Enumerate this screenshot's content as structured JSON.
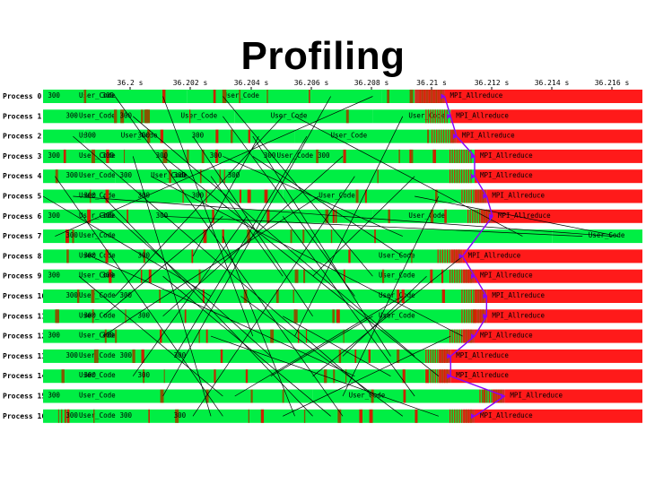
{
  "title": "Profiling",
  "axis": {
    "ticks": [
      "36.2 s",
      "36.202 s",
      "36.204 s",
      "36.206 s",
      "36.208 s",
      "36.21 s",
      "36.212 s",
      "36.214 s",
      "36.216 s"
    ]
  },
  "colors": {
    "user_code": "#00ee44",
    "mpi_allreduce": "#ff1a1a",
    "message_line": "#000000",
    "collective_arrow": "#8800ff"
  },
  "processes": [
    {
      "label": "Process 0",
      "segments": [
        {
          "start": 0.0,
          "end": 0.24,
          "kind": "user",
          "text": "User_Code"
        },
        {
          "start": 0.24,
          "end": 0.565,
          "kind": "user",
          "text": "User_Code"
        },
        {
          "start": 0.565,
          "end": 0.62,
          "kind": "user",
          "text": "User_Code"
        },
        {
          "start": 0.67,
          "end": 1.0,
          "kind": "mpi",
          "text": "MPI_Allreduce"
        }
      ],
      "tags": [
        "300",
        "300"
      ]
    },
    {
      "label": "Process 1",
      "segments": [
        {
          "start": 0.0,
          "end": 0.17,
          "kind": "user",
          "text": "User_Code"
        },
        {
          "start": 0.17,
          "end": 0.32,
          "kind": "user",
          "text": "User_Code"
        },
        {
          "start": 0.32,
          "end": 0.55,
          "kind": "user",
          "text": "User_Code"
        },
        {
          "start": 0.55,
          "end": 0.68,
          "kind": "user",
          "text": "User_Code"
        },
        {
          "start": 0.68,
          "end": 1.0,
          "kind": "mpi",
          "text": "MPI_Allreduce"
        }
      ],
      "tags": [
        "300",
        "300"
      ]
    },
    {
      "label": "Process 2",
      "segments": [
        {
          "start": 0.0,
          "end": 0.07,
          "kind": "user",
          "text": "User_Code"
        },
        {
          "start": 0.07,
          "end": 0.42,
          "kind": "user",
          "text": "User_Code"
        },
        {
          "start": 0.42,
          "end": 0.68,
          "kind": "user",
          "text": "User_Code"
        },
        {
          "start": 0.69,
          "end": 1.0,
          "kind": "mpi",
          "text": "MPI_Allreduce"
        }
      ],
      "tags": [
        "300",
        "300",
        "300"
      ]
    },
    {
      "label": "Process 3",
      "segments": [
        {
          "start": 0.0,
          "end": 0.33,
          "kind": "user",
          "text": "User_Code"
        },
        {
          "start": 0.33,
          "end": 0.72,
          "kind": "user",
          "text": "User_Code"
        },
        {
          "start": 0.72,
          "end": 1.0,
          "kind": "mpi",
          "text": "MPI_Allreduce"
        }
      ],
      "tags": [
        "300",
        "300",
        "300",
        "300",
        "300",
        "300"
      ]
    },
    {
      "label": "Process 4",
      "segments": [
        {
          "start": 0.0,
          "end": 0.12,
          "kind": "user",
          "text": "User_Code"
        },
        {
          "start": 0.12,
          "end": 0.72,
          "kind": "user",
          "text": "User_Code"
        },
        {
          "start": 0.72,
          "end": 1.0,
          "kind": "mpi",
          "text": "MPI_Allreduce"
        }
      ],
      "tags": [
        "300",
        "300",
        "300",
        "300"
      ]
    },
    {
      "label": "Process 5",
      "segments": [
        {
          "start": 0.0,
          "end": 0.4,
          "kind": "user",
          "text": "User_Code"
        },
        {
          "start": 0.4,
          "end": 0.72,
          "kind": "user",
          "text": "User_Code"
        },
        {
          "start": 0.74,
          "end": 1.0,
          "kind": "mpi",
          "text": "MPI_Allreduce"
        }
      ],
      "tags": [
        "300",
        "300",
        "300"
      ]
    },
    {
      "label": "Process 6",
      "segments": [
        {
          "start": 0.0,
          "end": 0.55,
          "kind": "user",
          "text": "User_Code"
        },
        {
          "start": 0.55,
          "end": 0.73,
          "kind": "user",
          "text": "User_Code"
        },
        {
          "start": 0.75,
          "end": 1.0,
          "kind": "mpi",
          "text": "MPI_Allreduce"
        }
      ],
      "tags": [
        "300",
        "300",
        "300"
      ]
    },
    {
      "label": "Process 7",
      "segments": [
        {
          "start": 0.0,
          "end": 0.85,
          "kind": "user",
          "text": "User_Code"
        },
        {
          "start": 0.85,
          "end": 1.0,
          "kind": "user",
          "text": "User_Code"
        }
      ],
      "tags": [
        "300"
      ]
    },
    {
      "label": "Process 8",
      "segments": [
        {
          "start": 0.0,
          "end": 0.5,
          "kind": "user",
          "text": "User_Code"
        },
        {
          "start": 0.5,
          "end": 0.68,
          "kind": "user",
          "text": "User_Code"
        },
        {
          "start": 0.7,
          "end": 1.0,
          "kind": "mpi",
          "text": "MPI_Allreduce"
        }
      ],
      "tags": [
        "300",
        "300"
      ]
    },
    {
      "label": "Process 9",
      "segments": [
        {
          "start": 0.0,
          "end": 0.5,
          "kind": "user",
          "text": "User_Code"
        },
        {
          "start": 0.5,
          "end": 0.7,
          "kind": "user",
          "text": "User_Code"
        },
        {
          "start": 0.72,
          "end": 1.0,
          "kind": "mpi",
          "text": "MPI_Allreduce"
        }
      ],
      "tags": [
        "300",
        "300"
      ]
    },
    {
      "label": "Process 10",
      "segments": [
        {
          "start": 0.0,
          "end": 0.5,
          "kind": "user",
          "text": "User_Code"
        },
        {
          "start": 0.5,
          "end": 0.72,
          "kind": "user",
          "text": "User_Code"
        },
        {
          "start": 0.74,
          "end": 1.0,
          "kind": "mpi",
          "text": "MPI_Allreduce"
        }
      ],
      "tags": [
        "300",
        "300"
      ]
    },
    {
      "label": "Process 11",
      "segments": [
        {
          "start": 0.0,
          "end": 0.5,
          "kind": "user",
          "text": "User_Code"
        },
        {
          "start": 0.5,
          "end": 0.72,
          "kind": "user",
          "text": "User_Code"
        },
        {
          "start": 0.74,
          "end": 1.0,
          "kind": "mpi",
          "text": "MPI_Allreduce"
        }
      ],
      "tags": [
        "300",
        "300"
      ]
    },
    {
      "label": "Process 12",
      "segments": [
        {
          "start": 0.0,
          "end": 0.7,
          "kind": "user",
          "text": "User_Code"
        },
        {
          "start": 0.72,
          "end": 1.0,
          "kind": "mpi",
          "text": "MPI_Allreduce"
        }
      ],
      "tags": [
        "300",
        "300"
      ]
    },
    {
      "label": "Process 13",
      "segments": [
        {
          "start": 0.0,
          "end": 0.66,
          "kind": "user",
          "text": "User_Code"
        },
        {
          "start": 0.68,
          "end": 1.0,
          "kind": "mpi",
          "text": "MPI_Allreduce"
        }
      ],
      "tags": [
        "300",
        "300",
        "300"
      ]
    },
    {
      "label": "Process 14",
      "segments": [
        {
          "start": 0.0,
          "end": 0.66,
          "kind": "user",
          "text": "User_Code"
        },
        {
          "start": 0.68,
          "end": 1.0,
          "kind": "mpi",
          "text": "MPI_Allreduce"
        }
      ],
      "tags": [
        "300",
        "300"
      ]
    },
    {
      "label": "Process 15",
      "segments": [
        {
          "start": 0.0,
          "end": 0.45,
          "kind": "user",
          "text": "User_Code"
        },
        {
          "start": 0.45,
          "end": 0.75,
          "kind": "user",
          "text": "User_Code"
        },
        {
          "start": 0.77,
          "end": 1.0,
          "kind": "mpi",
          "text": "MPI_Allreduce"
        }
      ],
      "tags": [
        "300"
      ]
    },
    {
      "label": "Process 16",
      "segments": [
        {
          "start": 0.0,
          "end": 0.7,
          "kind": "user",
          "text": "User_Code"
        },
        {
          "start": 0.72,
          "end": 1.0,
          "kind": "mpi",
          "text": "MPI_Allreduce"
        }
      ],
      "tags": [
        "300",
        "300",
        "300"
      ]
    }
  ],
  "messages": [
    [
      0,
      16,
      0.12,
      0.5
    ],
    [
      0,
      9,
      0.3,
      0.55
    ],
    [
      1,
      13,
      0.15,
      0.62
    ],
    [
      1,
      7,
      0.42,
      0.8
    ],
    [
      2,
      15,
      0.05,
      0.55
    ],
    [
      2,
      11,
      0.25,
      0.45
    ],
    [
      3,
      14,
      0.2,
      0.66
    ],
    [
      3,
      8,
      0.35,
      0.6
    ],
    [
      4,
      16,
      0.02,
      0.3
    ],
    [
      4,
      12,
      0.18,
      0.7
    ],
    [
      5,
      10,
      0.0,
      0.28
    ],
    [
      5,
      16,
      0.1,
      0.45
    ],
    [
      6,
      13,
      0.12,
      0.38
    ],
    [
      6,
      15,
      0.4,
      0.62
    ],
    [
      7,
      0,
      0.02,
      0.55
    ],
    [
      7,
      16,
      0.3,
      0.42
    ],
    [
      8,
      14,
      0.08,
      0.52
    ],
    [
      8,
      2,
      0.25,
      0.36
    ],
    [
      9,
      15,
      0.06,
      0.3
    ],
    [
      9,
      4,
      0.45,
      0.62
    ],
    [
      10,
      1,
      0.12,
      0.4
    ],
    [
      10,
      16,
      0.33,
      0.6
    ],
    [
      11,
      3,
      0.2,
      0.5
    ],
    [
      11,
      14,
      0.4,
      0.58
    ],
    [
      12,
      5,
      0.1,
      0.46
    ],
    [
      12,
      16,
      0.28,
      0.66
    ],
    [
      13,
      2,
      0.22,
      0.44
    ],
    [
      13,
      9,
      0.5,
      0.64
    ],
    [
      14,
      6,
      0.15,
      0.34
    ],
    [
      14,
      11,
      0.38,
      0.55
    ],
    [
      15,
      0,
      0.2,
      0.48
    ],
    [
      15,
      10,
      0.32,
      0.6
    ],
    [
      16,
      4,
      0.25,
      0.52
    ],
    [
      16,
      12,
      0.4,
      0.68
    ],
    [
      7,
      5,
      0.96,
      0.62
    ],
    [
      7,
      3,
      0.6,
      0.3
    ],
    [
      5,
      7,
      0.05,
      0.95
    ],
    [
      6,
      7,
      0.2,
      0.9
    ],
    [
      0,
      12,
      0.2,
      0.35
    ],
    [
      3,
      16,
      0.15,
      0.28
    ],
    [
      2,
      13,
      0.35,
      0.58
    ],
    [
      9,
      16,
      0.2,
      0.48
    ],
    [
      1,
      10,
      0.3,
      0.52
    ],
    [
      11,
      6,
      0.1,
      0.3
    ],
    [
      12,
      1,
      0.42,
      0.6
    ],
    [
      14,
      8,
      0.45,
      0.7
    ],
    [
      4,
      9,
      0.28,
      0.4
    ],
    [
      15,
      5,
      0.5,
      0.66
    ]
  ]
}
